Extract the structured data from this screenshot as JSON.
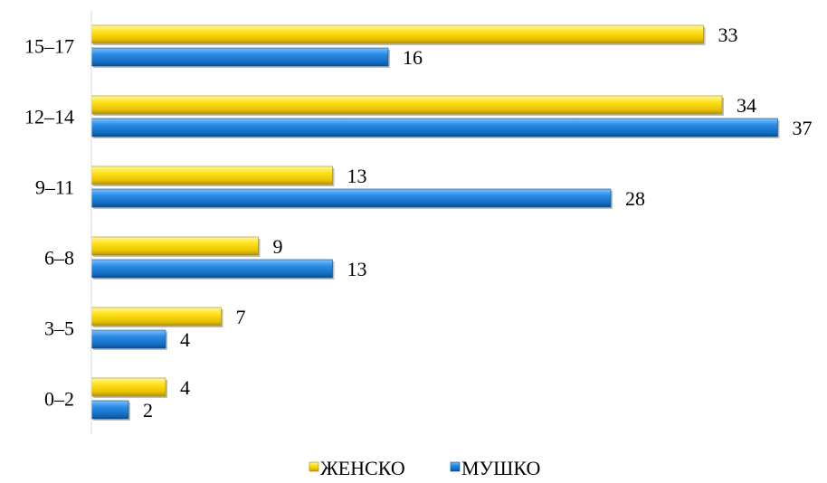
{
  "chart_data": {
    "type": "bar",
    "orientation": "horizontal",
    "categories": [
      "0–2",
      "3–5",
      "6–8",
      "9–11",
      "12–14",
      "15–17"
    ],
    "series": [
      {
        "name": "ЖЕНСКО",
        "values": [
          4,
          7,
          9,
          13,
          34,
          33
        ],
        "color": "#ffd700"
      },
      {
        "name": "МУШКО",
        "values": [
          2,
          4,
          13,
          28,
          37,
          16
        ],
        "color": "#1f7fd6"
      }
    ],
    "xlim": [
      0,
      37
    ],
    "grid": false,
    "legend": "bottom-center"
  }
}
